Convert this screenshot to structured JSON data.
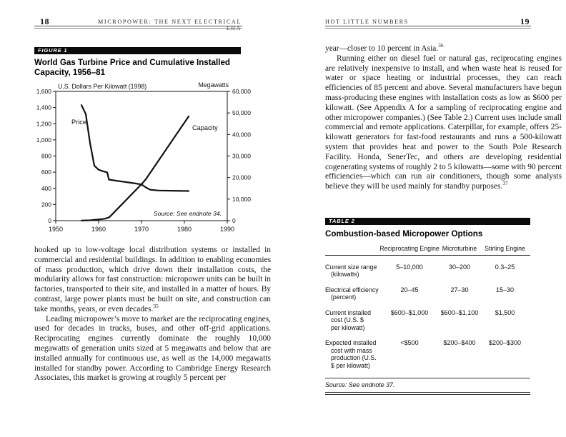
{
  "left_page": {
    "page_number": "18",
    "running_head": "MICROPOWER: THE NEXT ELECTRICAL ERA",
    "figure": {
      "tag": "FIGURE 1",
      "title": "World Gas Turbine Price and Cumulative Installed\nCapacity, 1956–81"
    },
    "paragraphs": [
      {
        "indent": false,
        "note": "35",
        "text": "hooked up to low-voltage local distribution systems or installed in commercial and residential buildings. In addition to enabling economies of mass production, which drive down their installation costs, the modularity allows for fast construction: micropower units can be built in factories, transported to their site, and installed in a matter of hours. By contrast, large power plants must be built on site, and construction can take months, years, or even decades."
      },
      {
        "indent": true,
        "note": null,
        "text": "Leading micropower’s move to market are the reciprocating engines, used for decades in trucks, buses, and other off-grid applications. Reciprocating engines currently dominate the roughly 10,000 megawatts of generation units sized at 5 megawatts and below that are installed annually for continuous use, as well as the 14,000 megawatts installed for standby power. According to Cambridge Energy Research Associates, this market is growing at roughly 5 percent per"
      }
    ]
  },
  "right_page": {
    "page_number": "19",
    "running_head": "HOT LITTLE NUMBERS",
    "paragraphs": [
      {
        "indent": false,
        "note": "36",
        "text": "year—closer to 10 percent in Asia."
      },
      {
        "indent": true,
        "note": "37",
        "text": "Running either on diesel fuel or natural gas, reciprocating engines are relatively inexpensive to install, and when waste heat is reused for water or space heating or industrial processes, they can reach efficiencies of 85 percent and above. Several manufacturers have begun mass-producing these engines with installation costs as low as $600 per kilowatt. (See Appendix A for a sampling of reciprocating engine and other micropower companies.) (See Table 2.) Current uses include small commercial and remote applications. Caterpillar, for example, offers 25-kilowatt generators for fast-food restaurants and runs a 500-kilowatt system that provides heat and power to the South Pole Research Facility. Honda, SenerTec, and others are developing residential cogenerating systems of roughly 2 to 5 kilowatts—some with 90 percent efficiencies—which can run air conditioners, though some analysts believe they will be used mainly for standby purposes."
      }
    ],
    "table": {
      "tag": "TABLE 2",
      "title": "Combustion-based Micropower Options",
      "column_headers": [
        "Reciprocating Engine",
        "Microturbine",
        "Stirling Engine"
      ],
      "rows": [
        {
          "label_lines": [
            "Current size range",
            "(kilowatts)"
          ],
          "values": [
            "5–10,000",
            "30–200",
            "0.3–25"
          ]
        },
        {
          "label_lines": [
            "Electrical efficiency",
            "(percent)"
          ],
          "values": [
            "20–45",
            "27–30",
            "15–30"
          ]
        },
        {
          "label_lines": [
            "Current installed",
            "cost (U.S. $",
            "per kilowatt)"
          ],
          "values": [
            "$600–$1,000",
            "$600–$1,100",
            "$1,500"
          ]
        },
        {
          "label_lines": [
            "Expected installed",
            "cost with mass",
            "production (U.S.",
            "$ per kilowatt)"
          ],
          "values": [
            "<$500",
            "$200–$400",
            "$200–$300"
          ]
        }
      ],
      "source": "Source: See endnote 37."
    }
  },
  "chart_data": {
    "type": "line",
    "title": "World Gas Turbine Price and Cumulative Installed Capacity, 1956–81",
    "grid": false,
    "legend": "inline-labels",
    "x_axis": {
      "min": 1950,
      "max": 1990,
      "tick_labels": [
        "1950",
        "1960",
        "1970",
        "1980",
        "1990"
      ]
    },
    "left_axis": {
      "label": "U.S. Dollars Per Kilowatt (1998)",
      "min": 0,
      "max": 1600,
      "step": 200,
      "tick_labels": [
        "0",
        "200",
        "400",
        "600",
        "800",
        "1,000",
        "1,200",
        "1,400",
        "1,600"
      ]
    },
    "right_axis": {
      "label": "Megawatts",
      "min": 0,
      "max": 60000,
      "step": 10000,
      "tick_labels": [
        "0",
        "10,000",
        "20,000",
        "30,000",
        "40,000",
        "50,000",
        "60,000"
      ]
    },
    "series": [
      {
        "name": "Price",
        "axis": "left",
        "points": [
          [
            1956,
            1430
          ],
          [
            1957,
            1320
          ],
          [
            1958,
            960
          ],
          [
            1959,
            680
          ],
          [
            1960,
            630
          ],
          [
            1961,
            612
          ],
          [
            1962,
            598
          ],
          [
            1962.4,
            508
          ],
          [
            1964,
            495
          ],
          [
            1966,
            480
          ],
          [
            1968,
            465
          ],
          [
            1970,
            448
          ],
          [
            1971,
            412
          ],
          [
            1972,
            383
          ],
          [
            1974,
            373
          ],
          [
            1981,
            367
          ]
        ]
      },
      {
        "name": "Capacity",
        "axis": "right",
        "points": [
          [
            1956,
            30
          ],
          [
            1958,
            150
          ],
          [
            1960,
            550
          ],
          [
            1961.5,
            900
          ],
          [
            1962.5,
            1600
          ],
          [
            1970,
            16900
          ],
          [
            1971,
            19200
          ],
          [
            1981,
            48400
          ]
        ]
      }
    ],
    "source_note": "Source:  See endnote 34."
  }
}
